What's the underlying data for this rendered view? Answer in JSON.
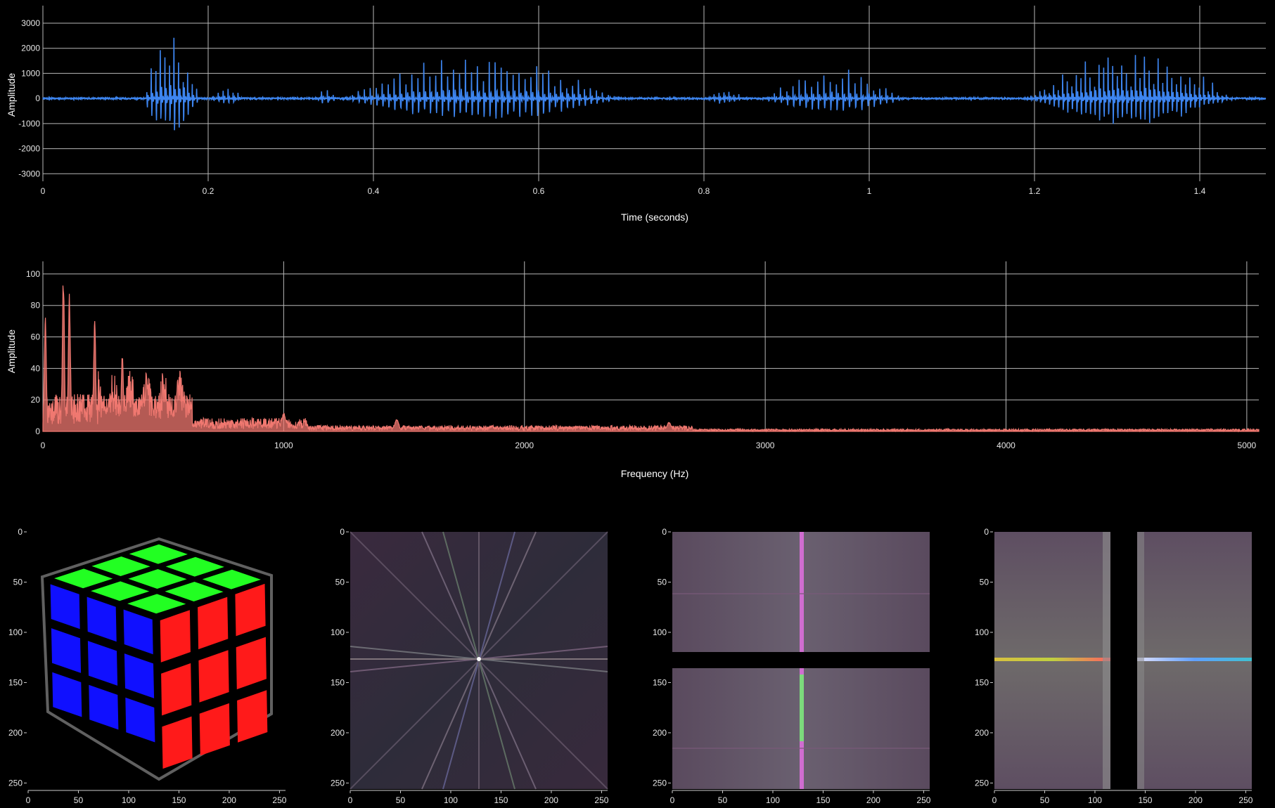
{
  "chart_data": [
    {
      "type": "line",
      "id": "waveform",
      "title": "",
      "xlabel": "Time (seconds)",
      "ylabel": "Amplitude",
      "xlim": [
        0,
        1.48
      ],
      "ylim": [
        -3300,
        3700
      ],
      "xticks": [
        0,
        0.2,
        0.4,
        0.6,
        0.8,
        1,
        1.2,
        1.4
      ],
      "xtick_labels": [
        "0",
        "0.2",
        "0.4",
        "0.6",
        "0.8",
        "1",
        "1.2",
        "1.4"
      ],
      "yticks": [
        -3000,
        -2000,
        -1000,
        0,
        1000,
        2000,
        3000
      ],
      "ytick_labels": [
        "-3000",
        "-2000",
        "-1000",
        "0",
        "1000",
        "2000",
        "3000"
      ],
      "grid": true,
      "line_color": "#3d85f0",
      "segments": [
        {
          "start": 0.12,
          "end": 0.2,
          "amplitude": 3100,
          "period": 0.0055
        },
        {
          "start": 0.2,
          "end": 0.25,
          "amplitude": 500,
          "period": 0.006
        },
        {
          "start": 0.33,
          "end": 0.36,
          "amplitude": 600,
          "period": 0.007
        },
        {
          "start": 0.36,
          "end": 0.75,
          "amplitude": 2000,
          "period": 0.0072
        },
        {
          "start": 0.8,
          "end": 0.86,
          "amplitude": 450,
          "period": 0.006
        },
        {
          "start": 0.87,
          "end": 1.07,
          "amplitude": 1300,
          "period": 0.0075
        },
        {
          "start": 1.19,
          "end": 1.48,
          "amplitude": 2300,
          "period": 0.0055
        }
      ]
    },
    {
      "type": "area",
      "id": "spectrum",
      "title": "",
      "xlabel": "Frequency (Hz)",
      "ylabel": "Amplitude",
      "xlim": [
        0,
        5050
      ],
      "ylim": [
        0,
        108
      ],
      "xticks": [
        0,
        1000,
        2000,
        3000,
        4000,
        5000
      ],
      "xtick_labels": [
        "0",
        "1000",
        "2000",
        "3000",
        "4000",
        "5000"
      ],
      "yticks": [
        0,
        20,
        40,
        60,
        80,
        100
      ],
      "ytick_labels": [
        "0",
        "20",
        "40",
        "60",
        "80",
        "100"
      ],
      "grid": true,
      "line_color": "#f07870",
      "peaks": [
        {
          "freq": 10,
          "value": 76
        },
        {
          "freq": 85,
          "value": 104
        },
        {
          "freq": 110,
          "value": 93
        },
        {
          "freq": 215,
          "value": 73
        },
        {
          "freq": 330,
          "value": 54
        },
        {
          "freq": 430,
          "value": 40
        },
        {
          "freq": 560,
          "value": 35
        },
        {
          "freq": 1000,
          "value": 12
        },
        {
          "freq": 1470,
          "value": 8
        },
        {
          "freq": 2600,
          "value": 6
        }
      ]
    },
    {
      "type": "heatmap",
      "id": "image-cube",
      "xticks": [
        0,
        50,
        100,
        150,
        200,
        250
      ],
      "xtick_labels": [
        "0",
        "50",
        "100",
        "150",
        "200",
        "250"
      ],
      "yticks": [
        0,
        50,
        100,
        150,
        200,
        250
      ],
      "ytick_labels": [
        "0",
        "50",
        "100",
        "150",
        "200",
        "250"
      ],
      "range": [
        0,
        256
      ],
      "colors": {
        "top": "#22ff22",
        "left": "#1010ff",
        "right": "#ff1a1a",
        "frame": "#606060"
      }
    },
    {
      "type": "heatmap",
      "id": "fft-centered",
      "xticks": [
        0,
        50,
        100,
        150,
        200,
        250
      ],
      "xtick_labels": [
        "0",
        "50",
        "100",
        "150",
        "200",
        "250"
      ],
      "yticks": [
        0,
        50,
        100,
        150,
        200,
        250
      ],
      "ytick_labels": [
        "0",
        "50",
        "100",
        "150",
        "200",
        "250"
      ],
      "range": [
        0,
        256
      ]
    },
    {
      "type": "heatmap",
      "id": "fft-horizontal-split",
      "xticks": [
        0,
        50,
        100,
        150,
        200,
        250
      ],
      "xtick_labels": [
        "0",
        "50",
        "100",
        "150",
        "200",
        "250"
      ],
      "yticks": [
        0,
        50,
        100,
        150,
        200,
        250
      ],
      "ytick_labels": [
        "0",
        "50",
        "100",
        "150",
        "200",
        "250"
      ],
      "range": [
        0,
        256
      ],
      "gap_rows": [
        120,
        136
      ]
    },
    {
      "type": "heatmap",
      "id": "fft-vertical-split",
      "xticks": [
        0,
        50,
        100,
        150,
        200,
        250
      ],
      "xtick_labels": [
        "0",
        "50",
        "100",
        "150",
        "200",
        "250"
      ],
      "yticks": [
        0,
        50,
        100,
        150,
        200,
        250
      ],
      "ytick_labels": [
        "0",
        "50",
        "100",
        "150",
        "200",
        "250"
      ],
      "range": [
        0,
        256
      ],
      "gap_cols": [
        114,
        141
      ]
    }
  ]
}
